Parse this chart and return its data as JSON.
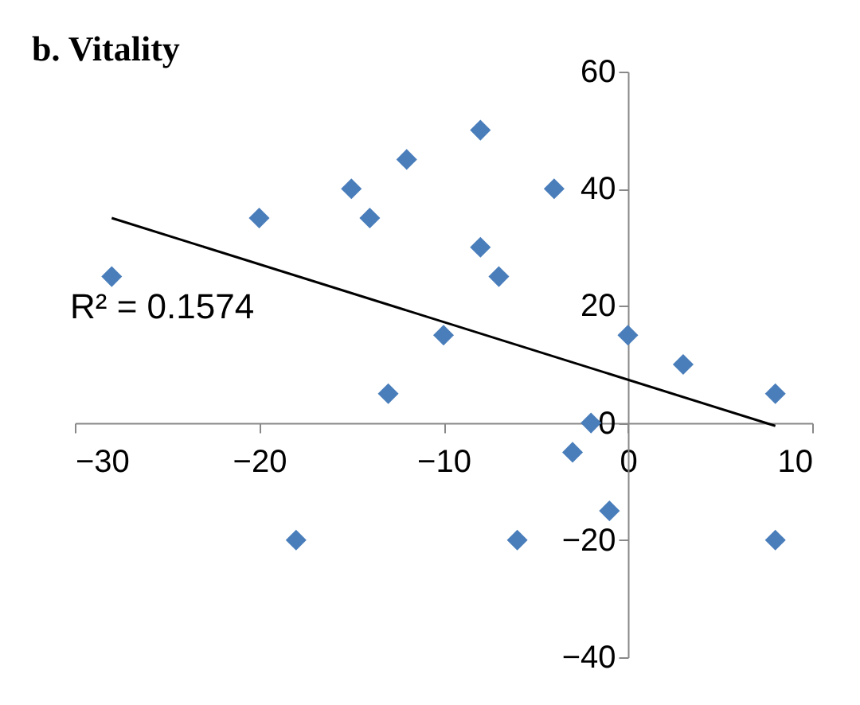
{
  "chart_data": {
    "type": "scatter",
    "title": "b. Vitality",
    "annotations": [
      "R² = 0.1574"
    ],
    "xlim": [
      -30,
      10
    ],
    "xticks": [
      -30,
      -20,
      -10,
      0,
      10
    ],
    "ylim": [
      -40,
      60
    ],
    "yticks": [
      -40,
      -20,
      0,
      20,
      40,
      60
    ],
    "grid": false,
    "legend": false,
    "series": [
      {
        "marker": "diamond",
        "color": "#4a7ebb",
        "x": [
          -28,
          -20,
          -15,
          -14,
          -12,
          -8,
          -8,
          -7,
          -4,
          -13,
          -10,
          -3,
          -2,
          -1,
          0,
          3,
          8,
          8,
          -18,
          -6
        ],
        "values": [
          25,
          35,
          40,
          35,
          45,
          50,
          30,
          25,
          40,
          5,
          15,
          -5,
          0,
          -15,
          15,
          10,
          5,
          -20,
          -20,
          -20
        ]
      },
      {
        "type": "line",
        "color": "#000000",
        "x": [
          -28,
          8
        ],
        "values": [
          35,
          -0.5
        ]
      }
    ]
  }
}
